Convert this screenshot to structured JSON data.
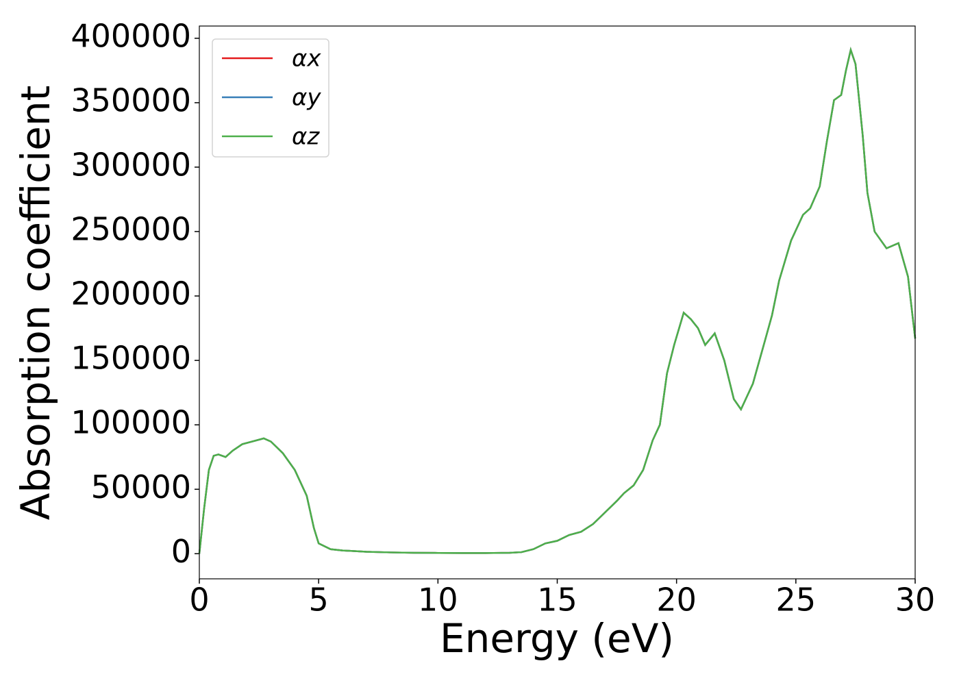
{
  "chart_data": {
    "type": "line",
    "xlabel": "Energy (eV)",
    "ylabel": "Absorption coefficient",
    "x": [
      0,
      0.2,
      0.4,
      0.6,
      0.8,
      1.1,
      1.4,
      1.8,
      2.2,
      2.7,
      3.0,
      3.5,
      4.0,
      4.5,
      4.8,
      5.0,
      5.5,
      6,
      7,
      8,
      9,
      10,
      11,
      12,
      13,
      13.5,
      14,
      14.5,
      15,
      15.5,
      16,
      16.5,
      17,
      17.5,
      17.8,
      18.2,
      18.6,
      19.0,
      19.3,
      19.6,
      19.9,
      20.3,
      20.6,
      20.9,
      21.2,
      21.6,
      22.0,
      22.4,
      22.7,
      23.2,
      23.7,
      24.0,
      24.3,
      24.8,
      25.3,
      25.6,
      26.0,
      26.3,
      26.6,
      26.9,
      27.1,
      27.3,
      27.5,
      27.8,
      28.0,
      28.3,
      28.8,
      29.3,
      29.7,
      30.0
    ],
    "series": [
      {
        "name": "αx",
        "color": "#e41a1c",
        "values": [
          0,
          35000,
          65000,
          76000,
          77000,
          75000,
          80000,
          85000,
          87000,
          89500,
          87000,
          78000,
          65000,
          45000,
          20000,
          8000,
          3500,
          2500,
          1500,
          1000,
          700,
          600,
          500,
          500,
          700,
          1200,
          3500,
          8000,
          10000,
          14500,
          17000,
          23000,
          32000,
          41000,
          47000,
          53000,
          65000,
          88000,
          100000,
          140000,
          162000,
          187000,
          182000,
          175000,
          162000,
          171000,
          150000,
          120000,
          112000,
          132000,
          165000,
          185000,
          212000,
          243000,
          263000,
          268000,
          285000,
          320000,
          352000,
          356000,
          375000,
          391000,
          380000,
          325000,
          280000,
          250000,
          237000,
          241000,
          215000,
          167000
        ]
      },
      {
        "name": "αy",
        "color": "#377eb8",
        "values": [
          0,
          35000,
          65000,
          76000,
          77000,
          75000,
          80000,
          85000,
          87000,
          89500,
          87000,
          78000,
          65000,
          45000,
          20000,
          8000,
          3500,
          2500,
          1500,
          1000,
          700,
          600,
          500,
          500,
          700,
          1200,
          3500,
          8000,
          10000,
          14500,
          17000,
          23000,
          32000,
          41000,
          47000,
          53000,
          65000,
          88000,
          100000,
          140000,
          162000,
          187000,
          182000,
          175000,
          162000,
          171000,
          150000,
          120000,
          112000,
          132000,
          165000,
          185000,
          212000,
          243000,
          263000,
          268000,
          285000,
          320000,
          352000,
          356000,
          375000,
          391000,
          380000,
          325000,
          280000,
          250000,
          237000,
          241000,
          215000,
          167000
        ]
      },
      {
        "name": "αz",
        "color": "#4daf4a",
        "values": [
          0,
          35000,
          65000,
          76000,
          77000,
          75000,
          80000,
          85000,
          87000,
          89500,
          87000,
          78000,
          65000,
          45000,
          20000,
          8000,
          3500,
          2500,
          1500,
          1000,
          700,
          600,
          500,
          500,
          700,
          1200,
          3500,
          8000,
          10000,
          14500,
          17000,
          23000,
          32000,
          41000,
          47000,
          53000,
          65000,
          88000,
          100000,
          140000,
          162000,
          187000,
          182000,
          175000,
          162000,
          171000,
          150000,
          120000,
          112000,
          132000,
          165000,
          185000,
          212000,
          243000,
          263000,
          268000,
          285000,
          320000,
          352000,
          356000,
          375000,
          391000,
          380000,
          325000,
          280000,
          250000,
          237000,
          241000,
          215000,
          167000
        ]
      }
    ],
    "xlim": [
      0,
      30
    ],
    "xticks": [
      0,
      5,
      10,
      15,
      20,
      25,
      30
    ],
    "ylim": [
      -19500,
      409500
    ],
    "yticks": [
      0,
      50000,
      100000,
      150000,
      200000,
      250000,
      300000,
      350000,
      400000
    ],
    "legend": "upper left",
    "grid": false
  }
}
